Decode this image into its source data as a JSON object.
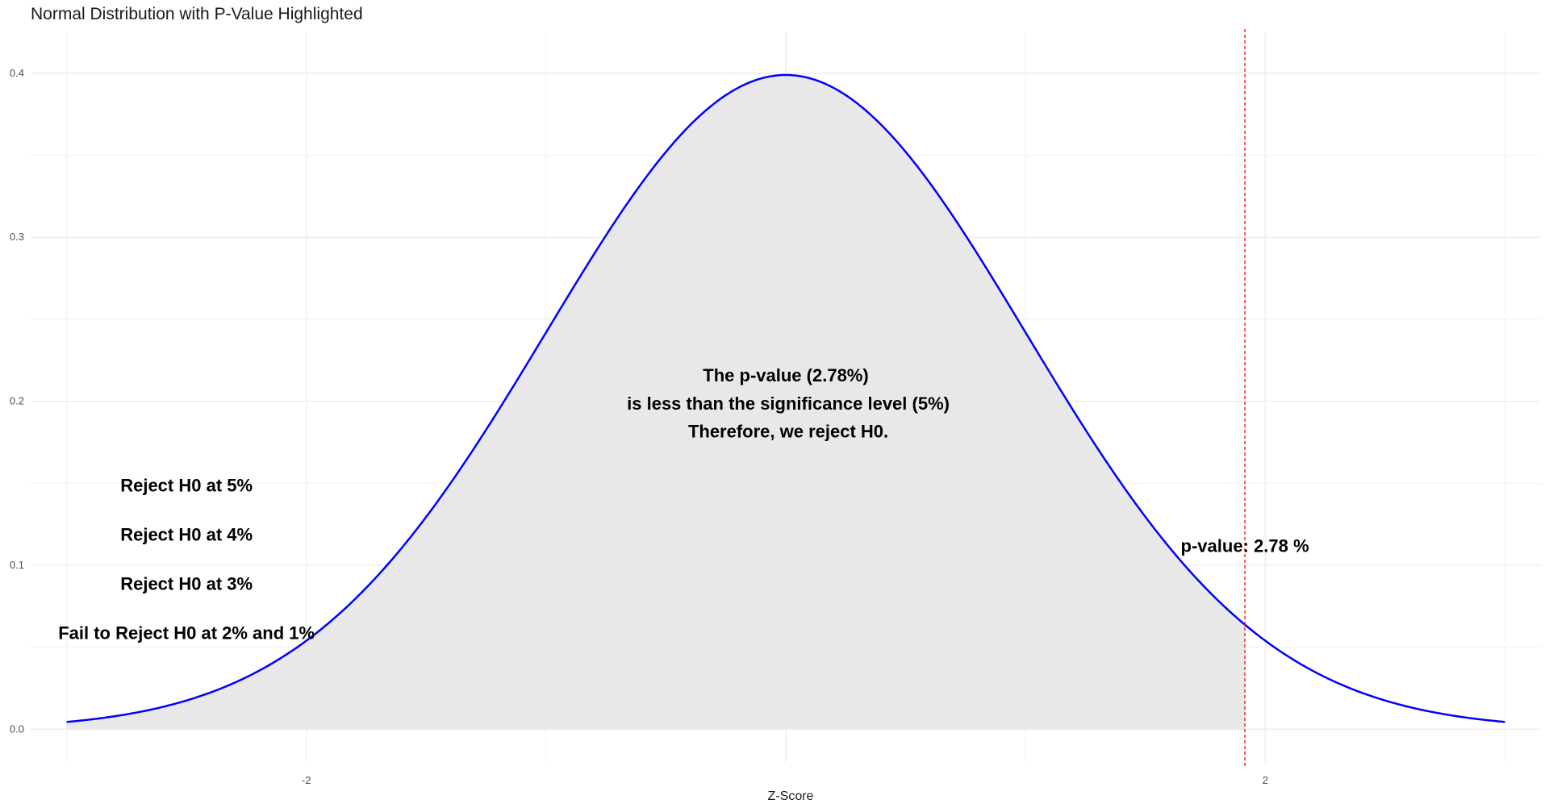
{
  "chart_data": {
    "type": "area",
    "title": "Normal Distribution with P-Value Highlighted",
    "xlabel": "Z-Score",
    "ylabel": "",
    "xlim": [
      -3.15,
      3.15
    ],
    "ylim": [
      -0.02,
      0.425
    ],
    "x_ticks": [
      -2,
      2
    ],
    "x_tick_labels": [
      "-2",
      "2"
    ],
    "y_ticks": [
      0.0,
      0.1,
      0.2,
      0.3,
      0.4
    ],
    "y_tick_labels": [
      "0.0",
      "0.1",
      "0.2",
      "0.3",
      "0.4"
    ],
    "grid": true,
    "curve": {
      "distribution": "standard normal density",
      "x_range": [
        -3,
        3
      ],
      "color": "#0000ff"
    },
    "shaded_region": {
      "x_range": [
        -3,
        1.915
      ],
      "color": "#e8e8e8"
    },
    "reference_line": {
      "x": 1.915,
      "color": "#ff0000",
      "style": "dashed"
    },
    "annotations": [
      {
        "text": "The p-value (2.78%)",
        "x": 0.0,
        "y": 0.212
      },
      {
        "text": " is less than the significance level (5%)",
        "x": 0.0,
        "y": 0.195
      },
      {
        "text": " Therefore, we reject H0.",
        "x": 0.0,
        "y": 0.178
      },
      {
        "text": "Reject H0 at 5%",
        "x": -2.5,
        "y": 0.145
      },
      {
        "text": "Reject H0 at 4%",
        "x": -2.5,
        "y": 0.115
      },
      {
        "text": "Reject H0 at 3%",
        "x": -2.5,
        "y": 0.085
      },
      {
        "text": "Fail to Reject H0 at 2% and 1%",
        "x": -2.5,
        "y": 0.055
      },
      {
        "text": "p-value: 2.78 %",
        "x": 1.915,
        "y": 0.108
      }
    ]
  }
}
